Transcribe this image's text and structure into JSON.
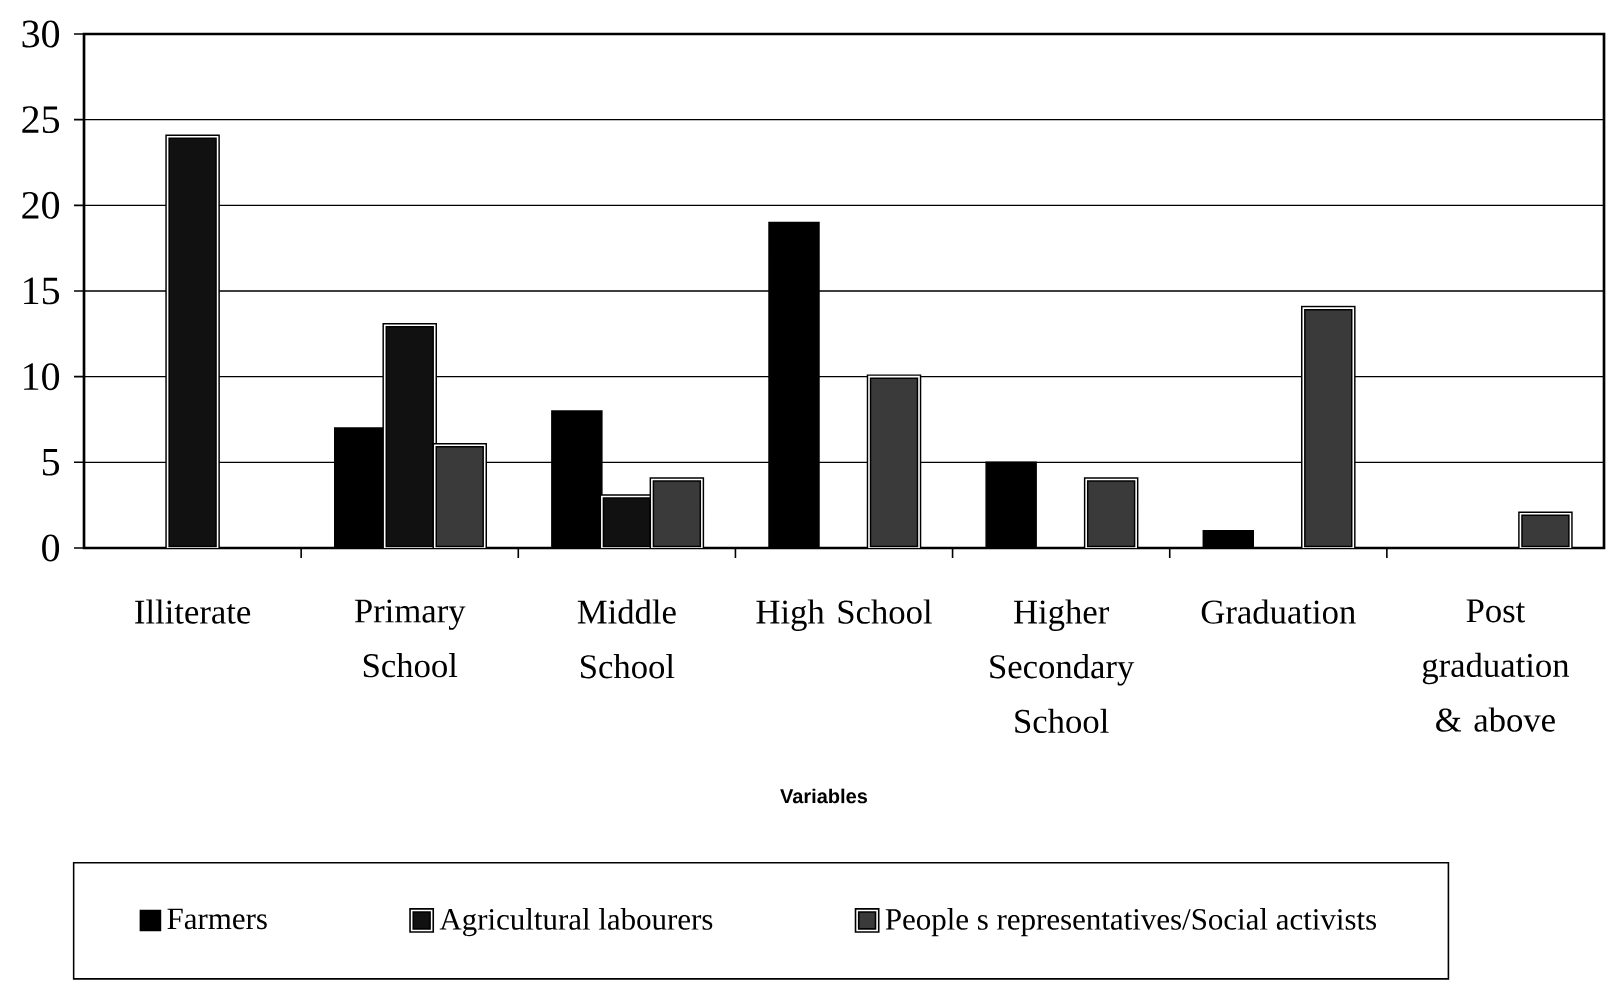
{
  "chart_data": {
    "type": "bar",
    "categories": [
      "Illiterate",
      "Primary School",
      "Middle School",
      "High School",
      "Higher Secondary School",
      "Graduation",
      "Post graduation & above"
    ],
    "series": [
      {
        "name": "Farmers",
        "color": "#000000",
        "values": [
          null,
          7,
          8,
          19,
          5,
          1,
          null
        ]
      },
      {
        "name": "Agricultural labourers",
        "color": "#111111",
        "values": [
          24,
          13,
          3,
          null,
          null,
          null,
          null
        ]
      },
      {
        "name": "People s representatives/Social activists",
        "color": "#3a3a3a",
        "values": [
          null,
          6,
          4,
          10,
          4,
          14,
          2
        ]
      }
    ],
    "xlabel": "Variables",
    "ylim": [
      0,
      30
    ],
    "yticks": [
      0,
      5,
      10,
      15,
      20,
      25,
      30
    ],
    "grid": "y",
    "legend": "bottom"
  }
}
